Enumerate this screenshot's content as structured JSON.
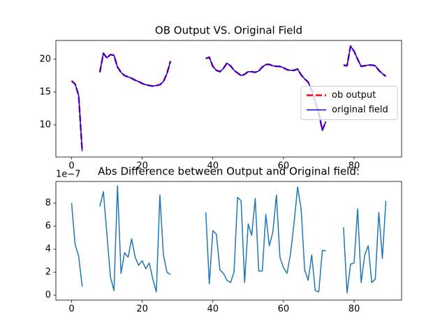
{
  "chart_data": [
    {
      "type": "line",
      "title": "OB Output VS. Original Field",
      "x": [
        0,
        1,
        2,
        3,
        4,
        5,
        6,
        7,
        8,
        9,
        10,
        11,
        12,
        13,
        14,
        15,
        16,
        17,
        18,
        19,
        20,
        21,
        22,
        23,
        24,
        25,
        26,
        27,
        28,
        29,
        30,
        31,
        32,
        33,
        34,
        35,
        36,
        37,
        38,
        39,
        40,
        41,
        42,
        43,
        44,
        45,
        46,
        47,
        48,
        49,
        50,
        51,
        52,
        53,
        54,
        55,
        56,
        57,
        58,
        59,
        60,
        61,
        62,
        63,
        64,
        65,
        66,
        67,
        68,
        69,
        70,
        71,
        72,
        73,
        74,
        75,
        76,
        77,
        78,
        79,
        80,
        81,
        82,
        83,
        84,
        85,
        86,
        87,
        88,
        89
      ],
      "series": [
        {
          "name": "ob output",
          "color": "#ff0000",
          "linestyle": "dashed",
          "values": [
            16.7,
            16.2,
            14.5,
            6.0,
            null,
            null,
            null,
            null,
            18.0,
            20.9,
            20.2,
            20.7,
            20.6,
            18.8,
            18.0,
            17.5,
            17.3,
            17.1,
            16.8,
            16.6,
            16.3,
            16.1,
            16.0,
            15.9,
            16.0,
            16.1,
            16.6,
            17.8,
            19.7,
            null,
            null,
            null,
            null,
            null,
            null,
            null,
            null,
            null,
            20.1,
            20.3,
            18.9,
            18.3,
            18.1,
            18.6,
            19.4,
            19.0,
            18.3,
            17.9,
            17.5,
            17.7,
            18.1,
            18.1,
            18.0,
            18.2,
            18.8,
            19.2,
            19.2,
            19.0,
            18.9,
            18.9,
            18.7,
            18.4,
            18.3,
            18.3,
            18.5,
            17.6,
            17.0,
            16.5,
            15.3,
            13.5,
            11.8,
            9.2,
            10.5,
            null,
            null,
            null,
            null,
            19.1,
            19.0,
            22.0,
            21.2,
            20.0,
            18.9,
            19.0,
            19.1,
            19.1,
            19.0,
            18.3,
            17.8,
            17.4
          ]
        },
        {
          "name": "original field",
          "color": "#0000ff",
          "linestyle": "solid",
          "values": [
            16.7,
            16.2,
            14.5,
            6.0,
            null,
            null,
            null,
            null,
            18.0,
            20.9,
            20.2,
            20.7,
            20.6,
            18.8,
            18.0,
            17.5,
            17.3,
            17.1,
            16.8,
            16.6,
            16.3,
            16.1,
            16.0,
            15.9,
            16.0,
            16.1,
            16.6,
            17.8,
            19.7,
            null,
            null,
            null,
            null,
            null,
            null,
            null,
            null,
            null,
            20.1,
            20.3,
            18.9,
            18.3,
            18.1,
            18.6,
            19.4,
            19.0,
            18.3,
            17.9,
            17.5,
            17.7,
            18.1,
            18.1,
            18.0,
            18.2,
            18.8,
            19.2,
            19.2,
            19.0,
            18.9,
            18.9,
            18.7,
            18.4,
            18.3,
            18.3,
            18.5,
            17.6,
            17.0,
            16.5,
            15.3,
            13.5,
            11.8,
            9.2,
            10.5,
            null,
            null,
            null,
            null,
            19.1,
            19.0,
            22.0,
            21.2,
            20.0,
            18.9,
            19.0,
            19.1,
            19.1,
            19.0,
            18.3,
            17.8,
            17.4
          ]
        }
      ],
      "xlim": [
        -4.45,
        93.45
      ],
      "xticks": [
        0,
        20,
        40,
        60,
        80
      ],
      "ylim": [
        5.1,
        22.85
      ],
      "yticks": [
        10,
        15,
        20
      ],
      "legend": "center right"
    },
    {
      "type": "line",
      "title": "Abs Difference between Output and Original field:",
      "offset_label": "1e−7",
      "x": [
        0,
        1,
        2,
        3,
        4,
        5,
        6,
        7,
        8,
        9,
        10,
        11,
        12,
        13,
        14,
        15,
        16,
        17,
        18,
        19,
        20,
        21,
        22,
        23,
        24,
        25,
        26,
        27,
        28,
        29,
        30,
        31,
        32,
        33,
        34,
        35,
        36,
        37,
        38,
        39,
        40,
        41,
        42,
        43,
        44,
        45,
        46,
        47,
        48,
        49,
        50,
        51,
        52,
        53,
        54,
        55,
        56,
        57,
        58,
        59,
        60,
        61,
        62,
        63,
        64,
        65,
        66,
        67,
        68,
        69,
        70,
        71,
        72,
        73,
        74,
        75,
        76,
        77,
        78,
        79,
        80,
        81,
        82,
        83,
        84,
        85,
        86,
        87,
        88,
        89
      ],
      "series": [
        {
          "color": "#1f77b4",
          "linestyle": "solid",
          "values": [
            8.0,
            4.4,
            3.4,
            0.75,
            null,
            null,
            null,
            null,
            7.7,
            9.0,
            5.3,
            1.6,
            0.4,
            9.5,
            1.9,
            3.7,
            3.3,
            4.9,
            3.3,
            2.6,
            3.0,
            2.3,
            2.8,
            1.4,
            0.3,
            8.7,
            3.5,
            2.0,
            1.8,
            null,
            null,
            null,
            null,
            null,
            null,
            null,
            null,
            null,
            7.2,
            1.0,
            5.6,
            5.3,
            2.2,
            1.9,
            1.3,
            1.1,
            2.0,
            8.5,
            8.2,
            1.1,
            6.2,
            5.2,
            8.4,
            2.1,
            2.1,
            7.0,
            4.3,
            5.5,
            8.7,
            3.3,
            2.4,
            1.9,
            3.6,
            6.3,
            9.4,
            7.5,
            2.2,
            1.3,
            3.5,
            0.4,
            0.3,
            3.9,
            3.85,
            null,
            null,
            null,
            null,
            5.9,
            0.2,
            2.7,
            2.8,
            7.5,
            1.1,
            3.5,
            4.3,
            1.1,
            1.4,
            7.2,
            3.2,
            8.2
          ]
        }
      ],
      "xlim": [
        -4.45,
        93.45
      ],
      "xticks": [
        0,
        20,
        40,
        60,
        80
      ],
      "ylim": [
        -0.42,
        9.88
      ],
      "yticks": [
        0,
        2,
        4,
        6,
        8
      ]
    }
  ]
}
